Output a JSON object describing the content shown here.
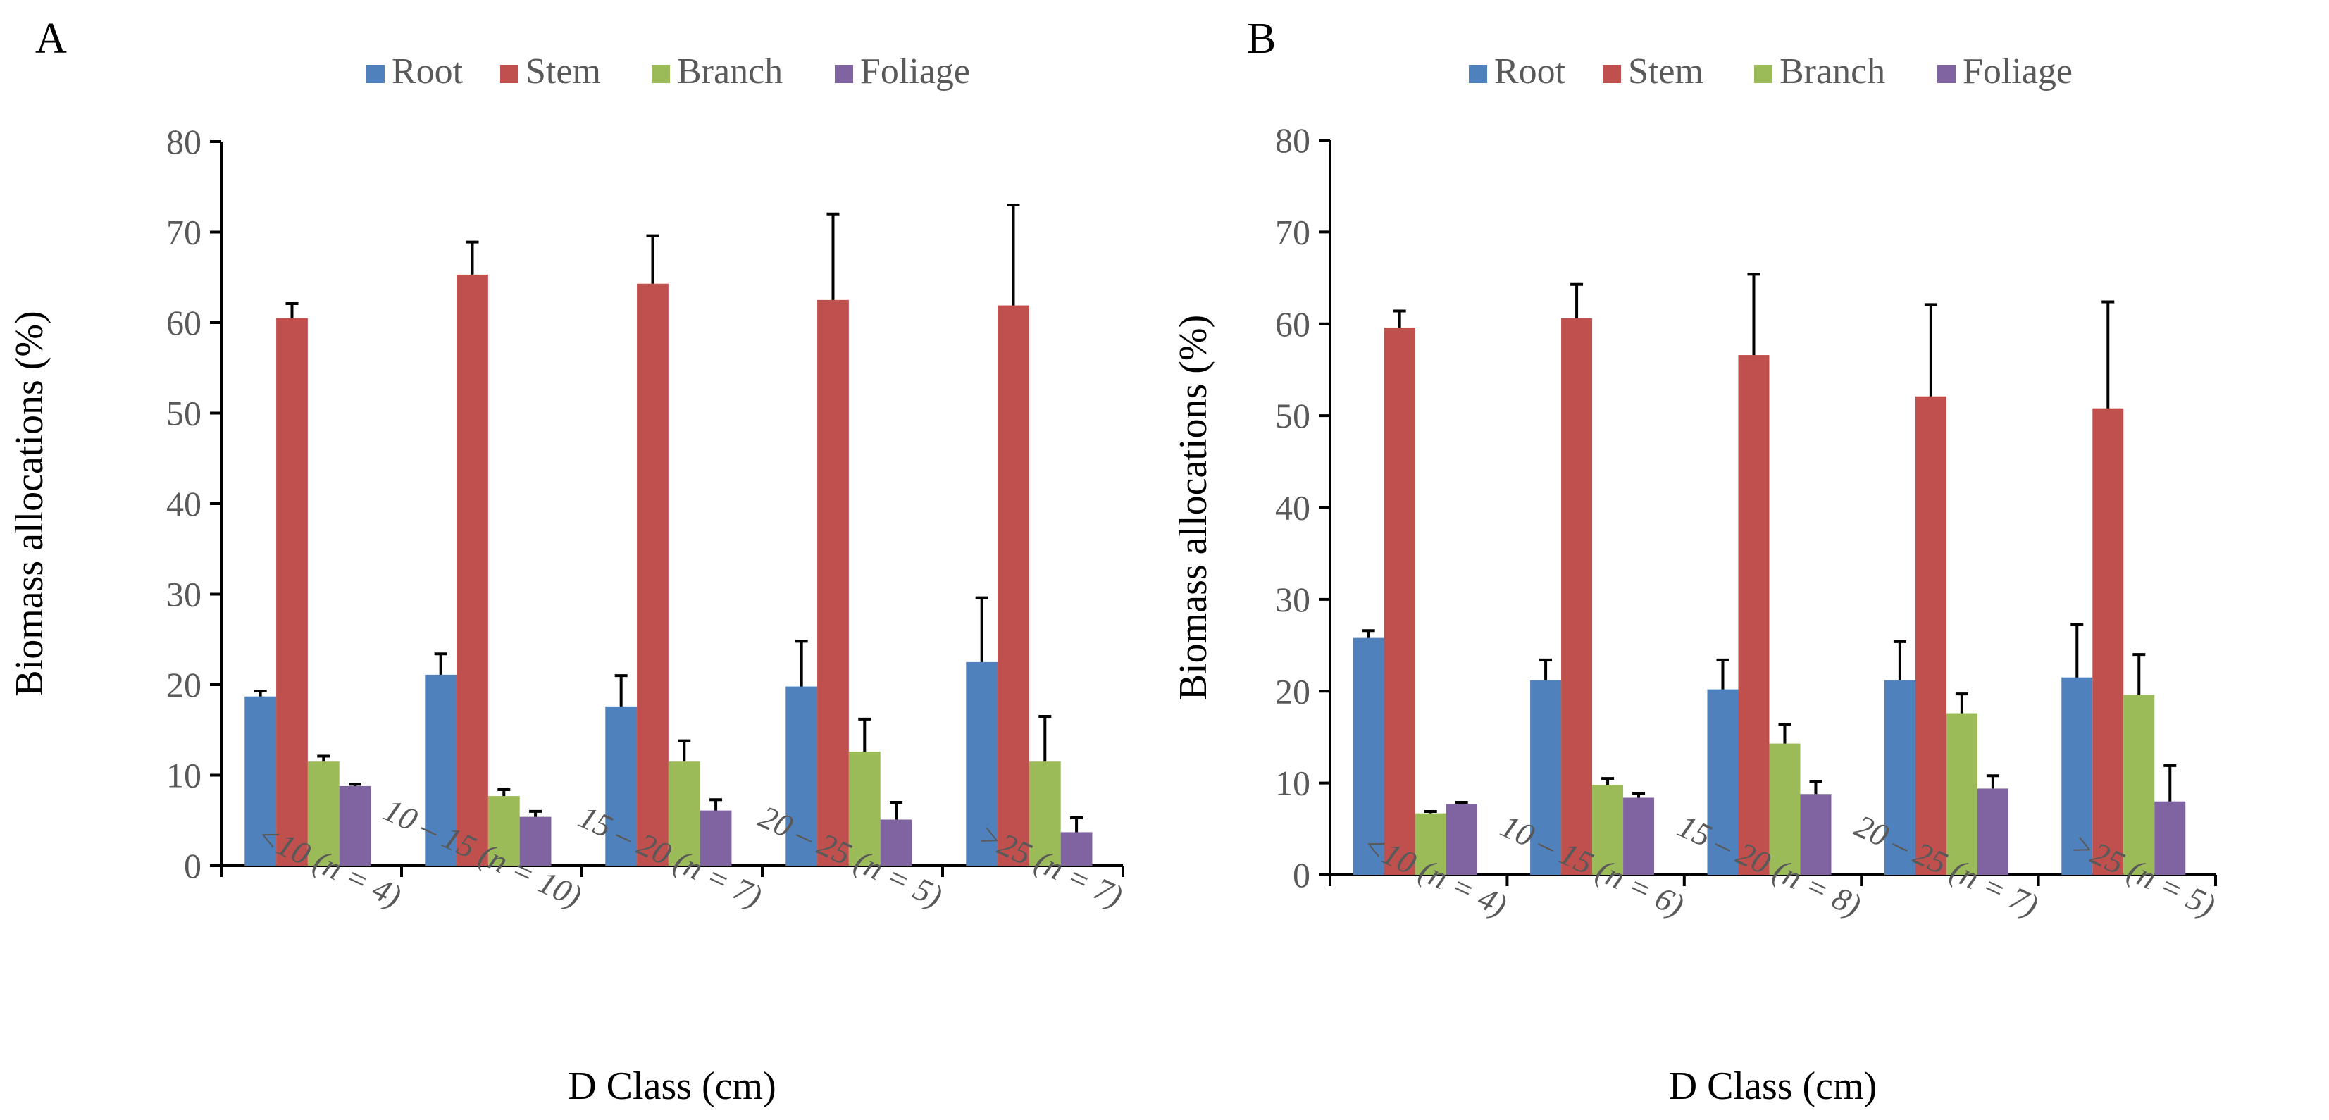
{
  "chart_data": [
    {
      "type": "bar",
      "panel_label": "A",
      "xlabel": "D Class (cm)",
      "ylabel": "Biomass allocations (%)",
      "ylim": [
        0,
        80
      ],
      "yticks": [
        0,
        10,
        20,
        30,
        40,
        50,
        60,
        70,
        80
      ],
      "legend_position": "top",
      "categories": [
        "<10 (n = 4)",
        "10 – 15 (n = 10)",
        "15 – 20 (n = 7)",
        "20 – 25 (n = 5)",
        ">25 (n = 7)"
      ],
      "series": [
        {
          "name": "Root",
          "color": "#4f81bd",
          "values": [
            18.7,
            21.1,
            17.6,
            19.8,
            22.5
          ],
          "errors": [
            0.6,
            2.3,
            3.4,
            5.0,
            7.1
          ]
        },
        {
          "name": "Stem",
          "color": "#c0504d",
          "values": [
            60.5,
            65.3,
            64.3,
            62.5,
            61.9
          ],
          "errors": [
            1.6,
            3.6,
            5.3,
            9.5,
            11.1
          ]
        },
        {
          "name": "Branch",
          "color": "#9bbb59",
          "values": [
            11.5,
            7.7,
            11.5,
            12.6,
            11.5
          ],
          "errors": [
            0.6,
            0.7,
            2.3,
            3.6,
            5.0
          ]
        },
        {
          "name": "Foliage",
          "color": "#8064a2",
          "values": [
            8.8,
            5.4,
            6.1,
            5.1,
            3.7
          ],
          "errors": [
            0.2,
            0.6,
            1.2,
            1.9,
            1.6
          ]
        }
      ]
    },
    {
      "type": "bar",
      "panel_label": "B",
      "xlabel": "D Class (cm)",
      "ylabel": "Biomass allocations (%)",
      "ylim": [
        0,
        80
      ],
      "yticks": [
        0,
        10,
        20,
        30,
        40,
        50,
        60,
        70,
        80
      ],
      "legend_position": "top",
      "categories": [
        "<10 (n = 4)",
        "10 – 15 (n = 6)",
        "15 – 20 (n = 8)",
        "20 – 25 (n = 7)",
        ">25 (n = 5)"
      ],
      "series": [
        {
          "name": "Root",
          "color": "#4f81bd",
          "values": [
            25.8,
            21.2,
            20.2,
            21.2,
            21.5
          ],
          "errors": [
            0.8,
            2.2,
            3.2,
            4.2,
            5.8
          ]
        },
        {
          "name": "Stem",
          "color": "#c0504d",
          "values": [
            59.6,
            60.6,
            56.6,
            52.1,
            50.8
          ],
          "errors": [
            1.8,
            3.7,
            8.8,
            10.0,
            11.6
          ]
        },
        {
          "name": "Branch",
          "color": "#9bbb59",
          "values": [
            6.7,
            9.8,
            14.3,
            17.6,
            19.6
          ],
          "errors": [
            0.2,
            0.7,
            2.1,
            2.1,
            4.4
          ]
        },
        {
          "name": "Foliage",
          "color": "#8064a2",
          "values": [
            7.7,
            8.4,
            8.8,
            9.4,
            8.0
          ],
          "errors": [
            0.2,
            0.5,
            1.4,
            1.4,
            3.9
          ]
        }
      ]
    }
  ]
}
